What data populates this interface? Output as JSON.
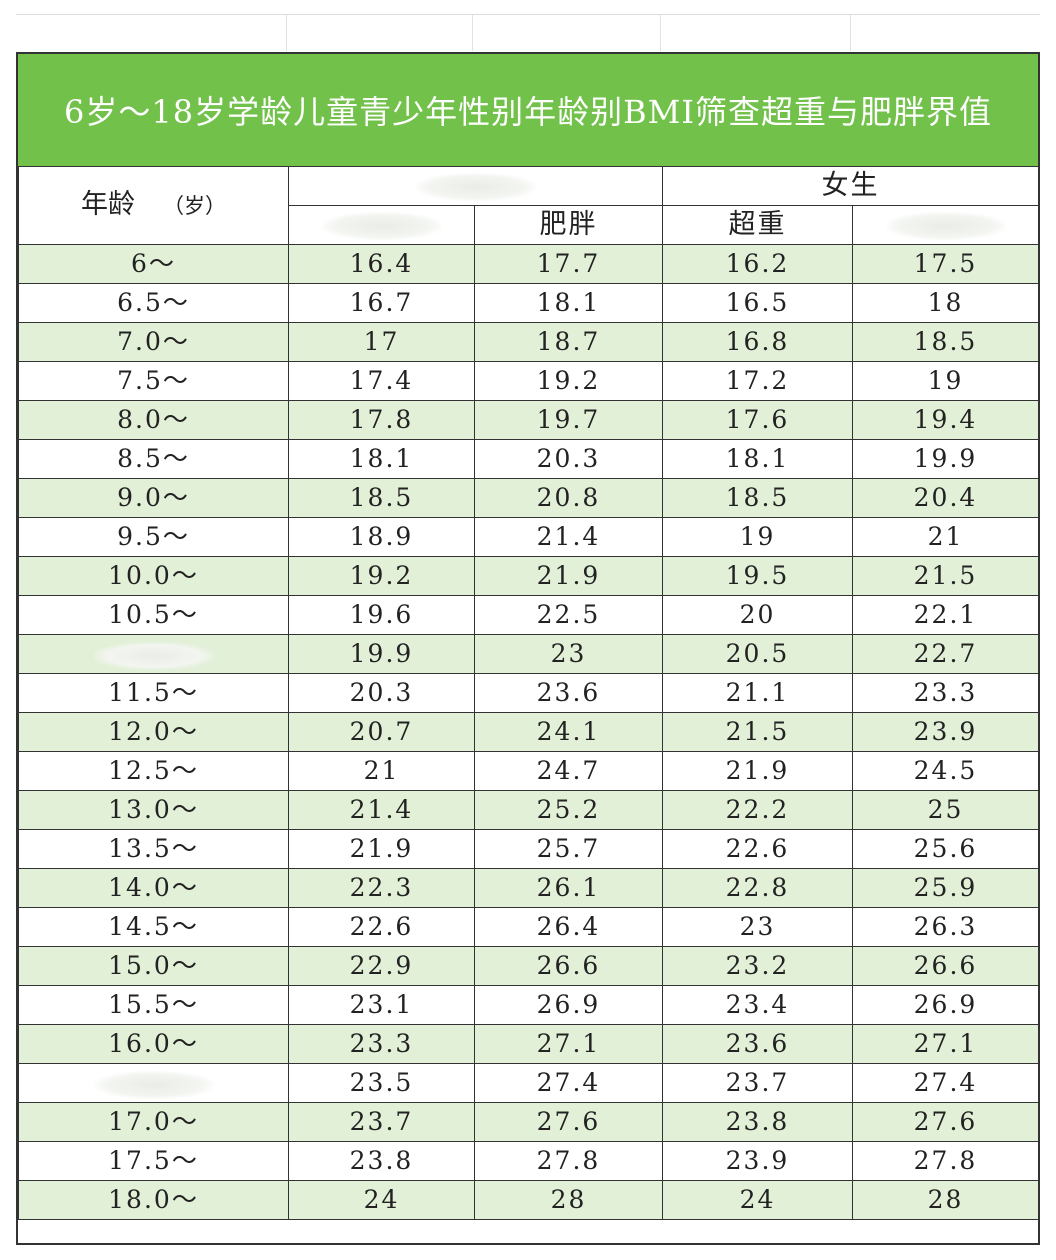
{
  "title": "6岁～18岁学龄儿童青少年性别年龄别BMI筛查超重与肥胖界值",
  "header": {
    "age_label": "年龄",
    "age_unit": "（岁）",
    "group_boys": "",
    "group_girls": "女生",
    "boys_overweight": "",
    "boys_obese": "肥胖",
    "girls_overweight": "超重",
    "girls_obese": ""
  },
  "rows": [
    {
      "age": "6～",
      "b_ow": "16.4",
      "b_ob": "17.7",
      "g_ow": "16.2",
      "g_ob": "17.5"
    },
    {
      "age": "6.5～",
      "b_ow": "16.7",
      "b_ob": "18.1",
      "g_ow": "16.5",
      "g_ob": "18"
    },
    {
      "age": "7.0～",
      "b_ow": "17",
      "b_ob": "18.7",
      "g_ow": "16.8",
      "g_ob": "18.5"
    },
    {
      "age": "7.5～",
      "b_ow": "17.4",
      "b_ob": "19.2",
      "g_ow": "17.2",
      "g_ob": "19"
    },
    {
      "age": "8.0～",
      "b_ow": "17.8",
      "b_ob": "19.7",
      "g_ow": "17.6",
      "g_ob": "19.4"
    },
    {
      "age": "8.5～",
      "b_ow": "18.1",
      "b_ob": "20.3",
      "g_ow": "18.1",
      "g_ob": "19.9"
    },
    {
      "age": "9.0～",
      "b_ow": "18.5",
      "b_ob": "20.8",
      "g_ow": "18.5",
      "g_ob": "20.4"
    },
    {
      "age": "9.5～",
      "b_ow": "18.9",
      "b_ob": "21.4",
      "g_ow": "19",
      "g_ob": "21"
    },
    {
      "age": "10.0～",
      "b_ow": "19.2",
      "b_ob": "21.9",
      "g_ow": "19.5",
      "g_ob": "21.5"
    },
    {
      "age": "10.5～",
      "b_ow": "19.6",
      "b_ob": "22.5",
      "g_ow": "20",
      "g_ob": "22.1"
    },
    {
      "age": "",
      "b_ow": "19.9",
      "b_ob": "23",
      "g_ow": "20.5",
      "g_ob": "22.7"
    },
    {
      "age": "11.5～",
      "b_ow": "20.3",
      "b_ob": "23.6",
      "g_ow": "21.1",
      "g_ob": "23.3"
    },
    {
      "age": "12.0～",
      "b_ow": "20.7",
      "b_ob": "24.1",
      "g_ow": "21.5",
      "g_ob": "23.9"
    },
    {
      "age": "12.5～",
      "b_ow": "21",
      "b_ob": "24.7",
      "g_ow": "21.9",
      "g_ob": "24.5"
    },
    {
      "age": "13.0～",
      "b_ow": "21.4",
      "b_ob": "25.2",
      "g_ow": "22.2",
      "g_ob": "25"
    },
    {
      "age": "13.5～",
      "b_ow": "21.9",
      "b_ob": "25.7",
      "g_ow": "22.6",
      "g_ob": "25.6"
    },
    {
      "age": "14.0～",
      "b_ow": "22.3",
      "b_ob": "26.1",
      "g_ow": "22.8",
      "g_ob": "25.9"
    },
    {
      "age": "14.5～",
      "b_ow": "22.6",
      "b_ob": "26.4",
      "g_ow": "23",
      "g_ob": "26.3"
    },
    {
      "age": "15.0～",
      "b_ow": "22.9",
      "b_ob": "26.6",
      "g_ow": "23.2",
      "g_ob": "26.6"
    },
    {
      "age": "15.5～",
      "b_ow": "23.1",
      "b_ob": "26.9",
      "g_ow": "23.4",
      "g_ob": "26.9"
    },
    {
      "age": "16.0～",
      "b_ow": "23.3",
      "b_ob": "27.1",
      "g_ow": "23.6",
      "g_ob": "27.1"
    },
    {
      "age": "",
      "b_ow": "23.5",
      "b_ob": "27.4",
      "g_ow": "23.7",
      "g_ob": "27.4"
    },
    {
      "age": "17.0～",
      "b_ow": "23.7",
      "b_ob": "27.6",
      "g_ow": "23.8",
      "g_ob": "27.6"
    },
    {
      "age": "17.5～",
      "b_ow": "23.8",
      "b_ob": "27.8",
      "g_ow": "23.9",
      "g_ob": "27.8"
    },
    {
      "age": "18.0～",
      "b_ow": "24",
      "b_ob": "28",
      "g_ow": "24",
      "g_ob": "28"
    }
  ],
  "colors": {
    "title_bg": "#72c14b",
    "title_text": "#ffffff",
    "row_stripe": "#e3f0d8",
    "grid_line": "#333333"
  }
}
